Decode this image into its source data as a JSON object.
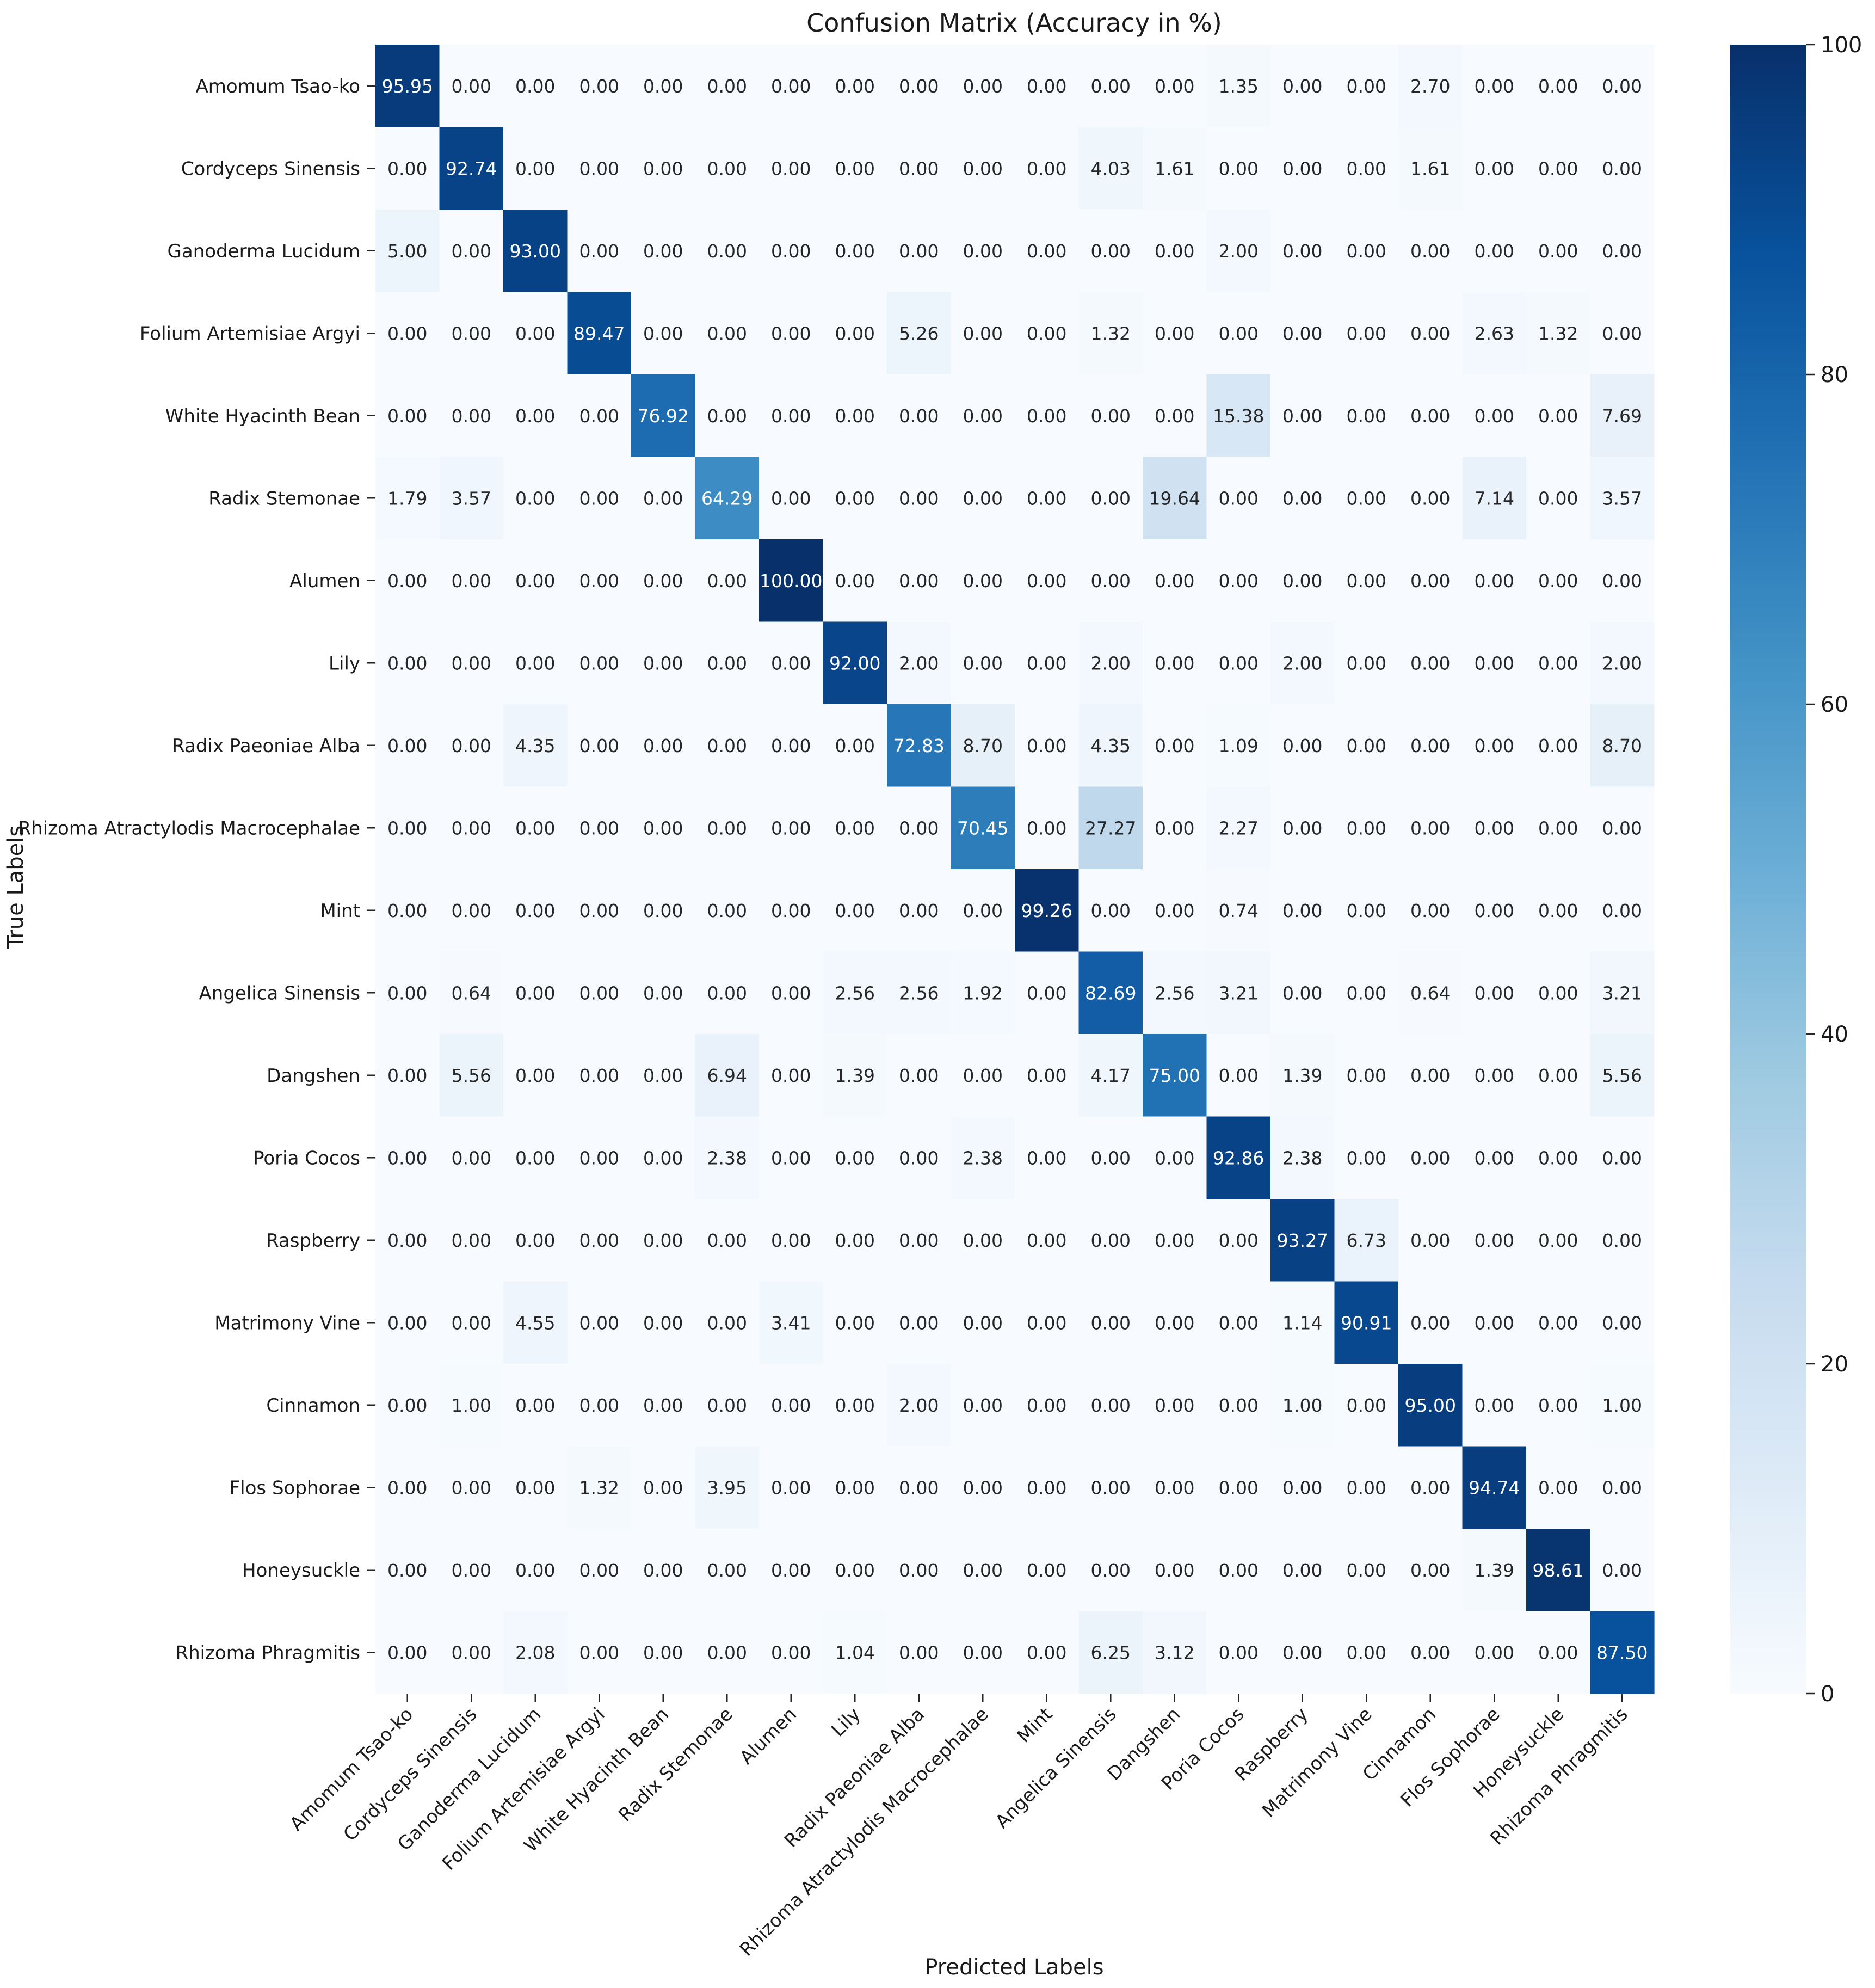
{
  "chart_data": {
    "type": "heatmap",
    "title": "Confusion Matrix (Accuracy in %)",
    "xlabel": "Predicted Labels",
    "ylabel": "True Labels",
    "labels": [
      "Amomum Tsao-ko",
      "Cordyceps Sinensis",
      "Ganoderma Lucidum",
      "Folium Artemisiae Argyi",
      "White Hyacinth Bean",
      "Radix Stemonae",
      "Alumen",
      "Lily",
      "Radix Paeoniae Alba",
      "Rhizoma Atractylodis Macrocephalae",
      "Mint",
      "Angelica Sinensis",
      "Dangshen",
      "Poria Cocos",
      "Raspberry",
      "Matrimony Vine",
      "Cinnamon",
      "Flos Sophorae",
      "Honeysuckle",
      "Rhizoma Phragmitis"
    ],
    "matrix": [
      [
        95.95,
        0,
        0,
        0,
        0,
        0,
        0,
        0,
        0,
        0,
        0,
        0,
        0,
        1.35,
        0,
        0,
        2.7,
        0,
        0,
        0
      ],
      [
        0,
        92.74,
        0,
        0,
        0,
        0,
        0,
        0,
        0,
        0,
        0,
        4.03,
        1.61,
        0,
        0,
        0,
        1.61,
        0,
        0,
        0
      ],
      [
        5.0,
        0,
        93.0,
        0,
        0,
        0,
        0,
        0,
        0,
        0,
        0,
        0,
        0,
        2.0,
        0,
        0,
        0,
        0,
        0,
        0
      ],
      [
        0,
        0,
        0,
        89.47,
        0,
        0,
        0,
        0,
        5.26,
        0,
        0,
        1.32,
        0,
        0,
        0,
        0,
        0,
        2.63,
        1.32,
        0
      ],
      [
        0,
        0,
        0,
        0,
        76.92,
        0,
        0,
        0,
        0,
        0,
        0,
        0,
        0,
        15.38,
        0,
        0,
        0,
        0,
        0,
        7.69
      ],
      [
        1.79,
        3.57,
        0,
        0,
        0,
        64.29,
        0,
        0,
        0,
        0,
        0,
        0,
        19.64,
        0,
        0,
        0,
        0,
        7.14,
        0,
        3.57
      ],
      [
        0,
        0,
        0,
        0,
        0,
        0,
        100.0,
        0,
        0,
        0,
        0,
        0,
        0,
        0,
        0,
        0,
        0,
        0,
        0,
        0
      ],
      [
        0,
        0,
        0,
        0,
        0,
        0,
        0,
        92.0,
        2.0,
        0,
        0,
        2.0,
        0,
        0,
        2.0,
        0,
        0,
        0,
        0,
        2.0
      ],
      [
        0,
        0,
        4.35,
        0,
        0,
        0,
        0,
        0,
        72.83,
        8.7,
        0,
        4.35,
        0,
        1.09,
        0,
        0,
        0,
        0,
        0,
        8.7
      ],
      [
        0,
        0,
        0,
        0,
        0,
        0,
        0,
        0,
        0,
        70.45,
        0,
        27.27,
        0,
        2.27,
        0,
        0,
        0,
        0,
        0,
        0
      ],
      [
        0,
        0,
        0,
        0,
        0,
        0,
        0,
        0,
        0,
        0,
        99.26,
        0,
        0,
        0.74,
        0,
        0,
        0,
        0,
        0,
        0
      ],
      [
        0,
        0.64,
        0,
        0,
        0,
        0,
        0,
        2.56,
        2.56,
        1.92,
        0,
        82.69,
        2.56,
        3.21,
        0,
        0,
        0.64,
        0,
        0,
        3.21
      ],
      [
        0,
        5.56,
        0,
        0,
        0,
        6.94,
        0,
        1.39,
        0,
        0,
        0,
        4.17,
        75.0,
        0,
        1.39,
        0,
        0,
        0,
        0,
        5.56
      ],
      [
        0,
        0,
        0,
        0,
        0,
        2.38,
        0,
        0,
        0,
        2.38,
        0,
        0,
        0,
        92.86,
        2.38,
        0,
        0,
        0,
        0,
        0
      ],
      [
        0,
        0,
        0,
        0,
        0,
        0,
        0,
        0,
        0,
        0,
        0,
        0,
        0,
        0,
        93.27,
        6.73,
        0,
        0,
        0,
        0
      ],
      [
        0,
        0,
        4.55,
        0,
        0,
        0,
        3.41,
        0,
        0,
        0,
        0,
        0,
        0,
        0,
        1.14,
        90.91,
        0,
        0,
        0,
        0
      ],
      [
        0,
        1.0,
        0,
        0,
        0,
        0,
        0,
        0,
        2.0,
        0,
        0,
        0,
        0,
        0,
        1.0,
        0,
        95.0,
        0,
        0,
        1.0
      ],
      [
        0,
        0,
        0,
        1.32,
        0,
        3.95,
        0,
        0,
        0,
        0,
        0,
        0,
        0,
        0,
        0,
        0,
        0,
        94.74,
        0,
        0
      ],
      [
        0,
        0,
        0,
        0,
        0,
        0,
        0,
        0,
        0,
        0,
        0,
        0,
        0,
        0,
        0,
        0,
        0,
        1.39,
        98.61,
        0
      ],
      [
        0,
        0,
        2.08,
        0,
        0,
        0,
        0,
        1.04,
        0,
        0,
        0,
        6.25,
        3.12,
        0,
        0,
        0,
        0,
        0,
        0,
        87.5
      ]
    ],
    "value_format": "2 decimals",
    "color_scale": {
      "name": "Blues",
      "min": 0,
      "max": 100,
      "ticks": [
        0,
        20,
        40,
        60,
        80,
        100
      ],
      "stops": [
        "#f7fbff",
        "#deebf7",
        "#c6dbef",
        "#9ecae1",
        "#6baed6",
        "#4292c6",
        "#2171b5",
        "#08519c",
        "#08306b"
      ]
    }
  }
}
